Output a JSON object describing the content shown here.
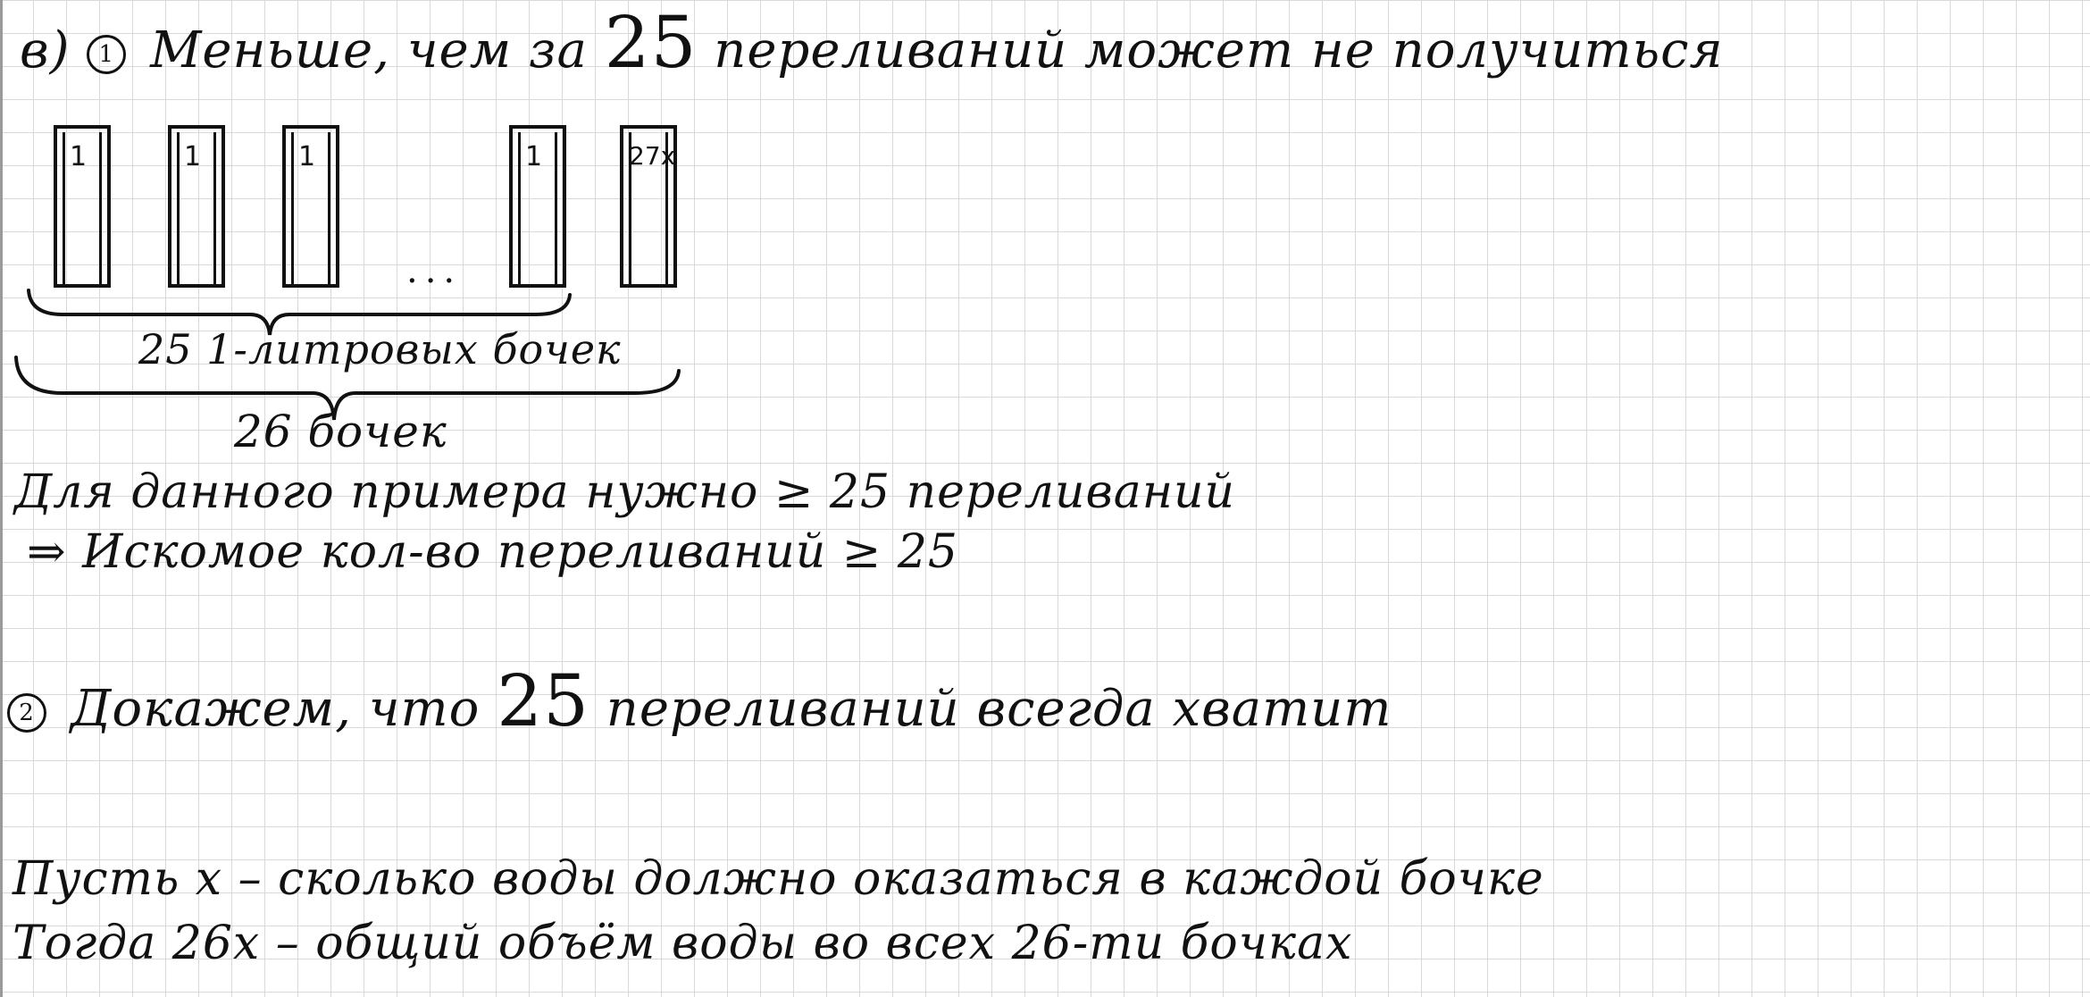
{
  "part_label": "в)",
  "step1": {
    "number": "1",
    "claim_before": "Меньше, чем за",
    "claim_number": "25",
    "claim_after": "переливаний может не получиться"
  },
  "barrels": {
    "labels": [
      "1",
      "1",
      "1",
      "1",
      "27x"
    ],
    "ellipsis": "...",
    "brace_small_label": "25 1-литровых бочек",
    "brace_large_label": "26 бочек"
  },
  "conclusion1": {
    "line1": "Для данного примера нужно ≥ 25 переливаний",
    "line2": "⇒ Искомое кол-во переливаний ≥ 25"
  },
  "step2": {
    "number": "2",
    "text_before": "Докажем, что",
    "text_number": "25",
    "text_after": "переливаний всегда хватит"
  },
  "definitions": {
    "line1": "Пусть   x  –  сколько воды должно оказаться в каждой бочке",
    "line2": "Тогда   26x  –  общий объём воды во всех 26-ти бочках"
  }
}
